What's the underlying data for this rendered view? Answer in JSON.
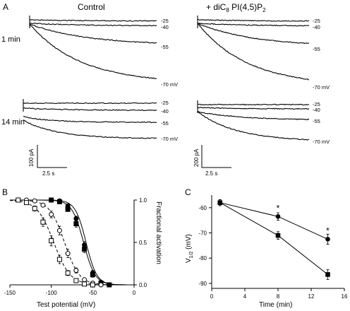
{
  "panel_a": {
    "letter": "A",
    "left_title": "Control",
    "right_title": "+ diC",
    "right_title_sub": "8",
    "right_title_rest": " PI(4,5)P",
    "right_title_sub2": "2",
    "rows": [
      {
        "time_label": "1 min"
      },
      {
        "time_label": "14 min"
      }
    ],
    "voltage_labels": [
      "-25",
      "-40",
      "-55",
      "-70 mV"
    ],
    "scale_left": {
      "current": "100 pA",
      "time": "2.5 s"
    },
    "scale_right": {
      "current": "200 pA",
      "time": "2.5 s"
    }
  },
  "panel_b": {
    "letter": "B",
    "xlabel": "Test potential (mV)",
    "ylabel": "Fractional activation"
  },
  "panel_c": {
    "letter": "C",
    "xlabel": "Time (min)",
    "ylabel_main": "V",
    "ylabel_sub": "1/2",
    "ylabel_unit": " (mV)",
    "significance_mark": "*"
  },
  "chart_data": [
    {
      "type": "scatter",
      "panel": "B",
      "xlabel": "Test potential (mV)",
      "ylabel": "Fractional activation",
      "xlim": [
        -150,
        0
      ],
      "ylim": [
        0,
        1
      ],
      "xticks": [
        -150,
        -100,
        -50,
        0
      ],
      "yticks": [
        0.0,
        0.5,
        1.0
      ],
      "tick_labels_x": [
        "-150",
        "-100",
        "-50",
        "0"
      ],
      "tick_labels_y": [
        "0.0",
        "0.5",
        "1.0"
      ],
      "series": [
        {
          "marker": "filled-circle",
          "fit": "solid",
          "x": [
            -100,
            -90,
            -80,
            -70,
            -60,
            -50,
            -40,
            -30
          ],
          "y": [
            1.0,
            0.99,
            0.93,
            0.78,
            0.47,
            0.14,
            0.03,
            0.0
          ],
          "err": [
            0.01,
            0.01,
            0.02,
            0.03,
            0.04,
            0.03,
            0.01,
            0.0
          ]
        },
        {
          "marker": "filled-square",
          "fit": "solid",
          "x": [
            -100,
            -90,
            -80,
            -70,
            -60,
            -50,
            -40,
            -30
          ],
          "y": [
            1.0,
            0.98,
            0.89,
            0.72,
            0.42,
            0.12,
            0.02,
            0.0
          ],
          "err": [
            0.01,
            0.01,
            0.02,
            0.04,
            0.04,
            0.03,
            0.01,
            0.0
          ]
        },
        {
          "marker": "open-circle",
          "fit": "dashed",
          "x": [
            -130,
            -120,
            -110,
            -100,
            -90,
            -80,
            -70,
            -60,
            -50,
            -40
          ],
          "y": [
            1.0,
            0.99,
            0.94,
            0.83,
            0.64,
            0.37,
            0.17,
            0.06,
            0.02,
            0.0
          ],
          "err": [
            0.0,
            0.01,
            0.02,
            0.04,
            0.05,
            0.05,
            0.03,
            0.02,
            0.01,
            0.0
          ]
        },
        {
          "marker": "open-square",
          "fit": "dashed",
          "x": [
            -140,
            -130,
            -120,
            -110,
            -100,
            -90,
            -80,
            -70,
            -60,
            -50
          ],
          "y": [
            1.0,
            0.97,
            0.9,
            0.74,
            0.52,
            0.3,
            0.14,
            0.05,
            0.01,
            0.0
          ],
          "err": [
            0.0,
            0.01,
            0.03,
            0.05,
            0.06,
            0.05,
            0.03,
            0.02,
            0.01,
            0.0
          ]
        }
      ]
    },
    {
      "type": "line",
      "panel": "C",
      "xlabel": "Time (min)",
      "ylabel": "V1/2 (mV)",
      "xlim": [
        0,
        16
      ],
      "ylim": [
        -92,
        -55
      ],
      "xticks": [
        0,
        4,
        8,
        12,
        16
      ],
      "yticks": [
        -90,
        -80,
        -70,
        -60
      ],
      "tick_labels_x": [
        "0",
        "4",
        "8",
        "12",
        "16"
      ],
      "tick_labels_y": [
        "-90",
        "-80",
        "-70",
        "-60"
      ],
      "series": [
        {
          "marker": "filled-circle",
          "x": [
            1,
            8,
            14
          ],
          "y": [
            -58,
            -63.5,
            -72.5
          ],
          "err": [
            1.2,
            1.5,
            2.0
          ]
        },
        {
          "marker": "filled-square",
          "x": [
            1,
            8,
            14
          ],
          "y": [
            -58,
            -71,
            -86.5
          ],
          "err": [
            1.2,
            1.5,
            2.0
          ]
        }
      ],
      "annotations": [
        {
          "text": "*",
          "x": 8
        },
        {
          "text": "*",
          "x": 14
        }
      ]
    }
  ]
}
